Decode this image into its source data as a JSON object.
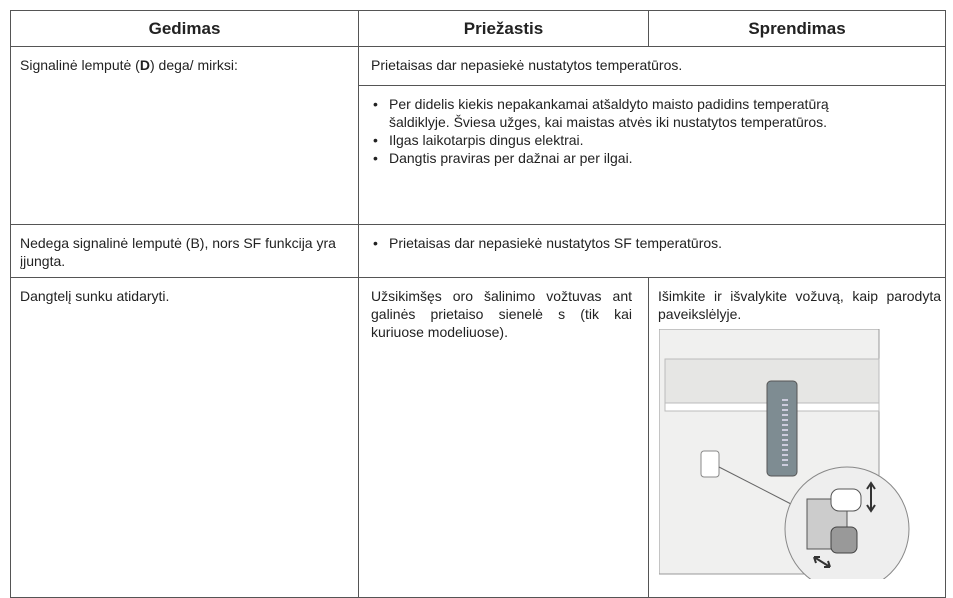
{
  "table": {
    "header": [
      "Gedimas",
      "Priežastis",
      "Sprendimas"
    ],
    "rows": [
      {
        "fault": [
          "Signalinė lemputė (",
          "D",
          ")  dega/ mirksi:"
        ],
        "cause": "Prietaisas dar nepasiekė nustatytos temperatūros.",
        "bullets": [
          "Per didelis kiekis nepakankamai atšaldyto maisto padidins temperatūrą šaldiklyje. Šviesa užges, kai maistas atvės iki nustatytos temperatūros.",
          "Ilgas laikotarpis dingus elektrai.",
          "Dangtis praviras per dažnai ar per ilgai."
        ]
      },
      {
        "fault": "Nedega signalinė lemputė (B), nors SF funkcija yra įjungta.",
        "bullets": [
          "Prietaisas dar nepasiekė nustatytos SF temperatūros."
        ]
      },
      {
        "fault": "Dangtelį sunku atidaryti.",
        "cause": "Užsikimšęs oro šalinimo vožtuvas ant galinės prietaiso sienelė s (tik kai kuriuose modeliuose).",
        "solution": "Išimkite ir išvalykite vožuvą, kaip parodyta paveikslėlyje."
      }
    ]
  }
}
